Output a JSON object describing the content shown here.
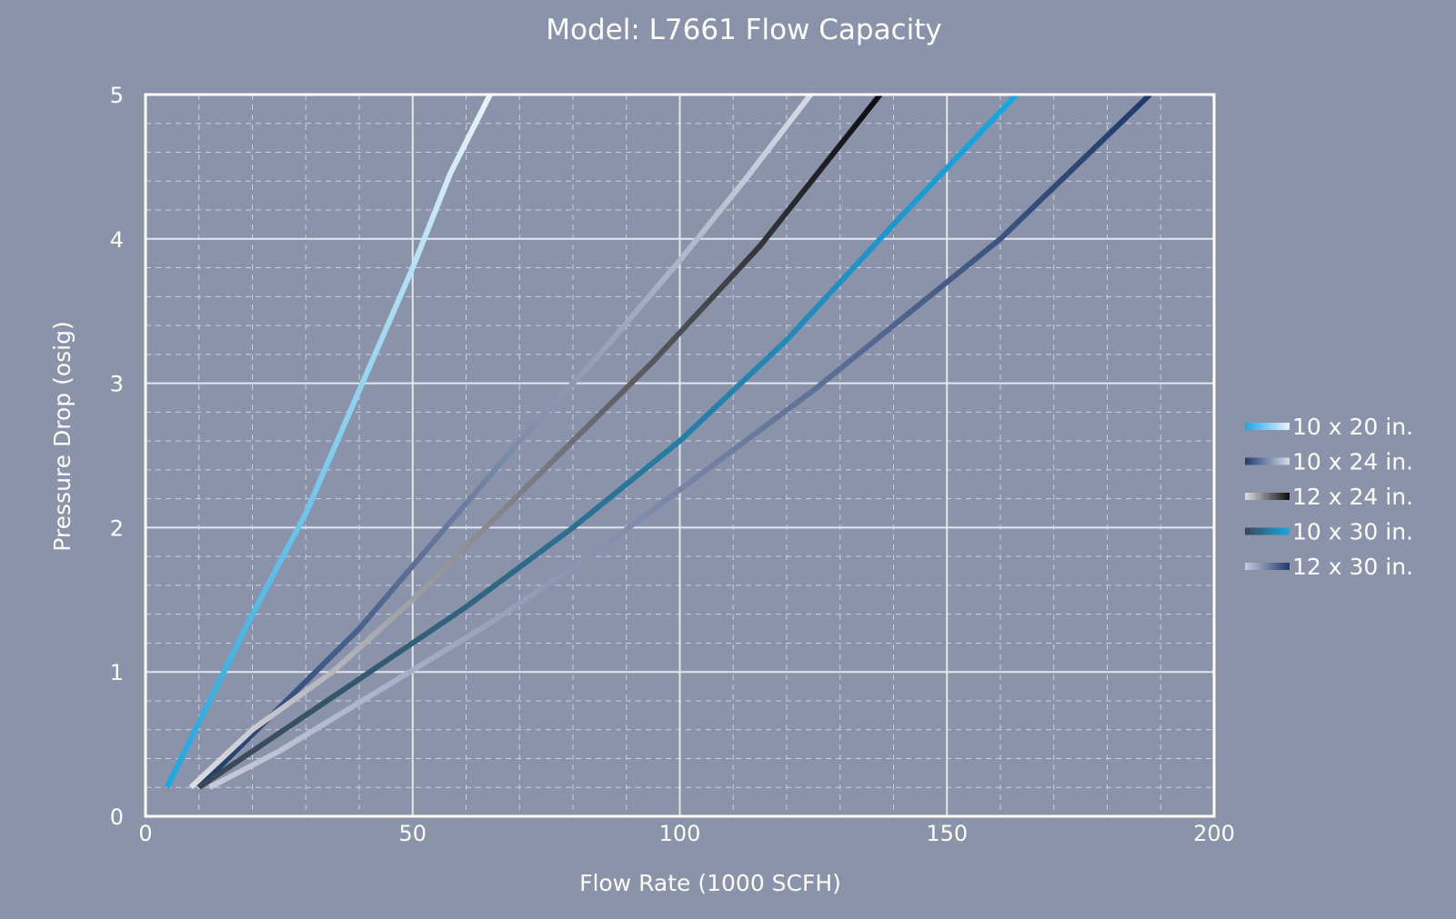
{
  "chart_data": {
    "type": "line",
    "title": "Model: L7661 Flow Capacity",
    "xlabel": "Flow Rate (1000 SCFH)",
    "ylabel": "Pressure Drop (osig)",
    "xlim": [
      0,
      200
    ],
    "ylim": [
      0,
      5
    ],
    "x_ticks": [
      "0",
      "50",
      "100",
      "150",
      "200"
    ],
    "y_ticks": [
      "0",
      "1",
      "2",
      "3",
      "4",
      "5"
    ],
    "grid": true,
    "legend_position": "right",
    "series": [
      {
        "name": "10 x 20 in.",
        "colors": [
          "#1aa7e0",
          "#e9f4fb"
        ],
        "x": [
          4,
          20,
          30,
          40,
          50,
          57,
          64.5
        ],
        "y": [
          0.2,
          1.4,
          2.1,
          2.95,
          3.8,
          4.45,
          5.0
        ]
      },
      {
        "name": "10 x 24 in.",
        "colors": [
          "#1e3b6e",
          "#d8dbe6"
        ],
        "x": [
          10,
          25,
          40,
          55,
          70,
          85,
          100,
          112,
          124.5
        ],
        "y": [
          0.2,
          0.75,
          1.3,
          1.95,
          2.6,
          3.2,
          3.85,
          4.4,
          5.0
        ]
      },
      {
        "name": "12 x 24 in.",
        "colors": [
          "#dcdde3",
          "#0c0c12"
        ],
        "x": [
          8.5,
          20,
          35,
          50,
          65,
          80,
          95,
          115,
          137.5
        ],
        "y": [
          0.2,
          0.6,
          1.0,
          1.5,
          2.05,
          2.6,
          3.15,
          3.95,
          5.0
        ]
      },
      {
        "name": "10 x 30 in.",
        "colors": [
          "#3c4654",
          "#14a9e6"
        ],
        "x": [
          10,
          20,
          40,
          60,
          80,
          100,
          120,
          140,
          163
        ],
        "y": [
          0.2,
          0.45,
          0.95,
          1.45,
          2.0,
          2.6,
          3.3,
          4.1,
          5.0
        ]
      },
      {
        "name": "12 x 30 in.",
        "colors": [
          "#c8cadc",
          "#1e3a6c"
        ],
        "x": [
          12,
          25,
          45,
          65,
          85,
          105,
          125,
          160,
          188
        ],
        "y": [
          0.2,
          0.45,
          0.9,
          1.35,
          1.85,
          2.4,
          2.95,
          4.0,
          5.0
        ]
      }
    ]
  }
}
